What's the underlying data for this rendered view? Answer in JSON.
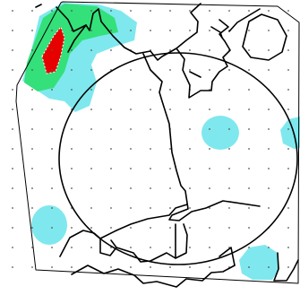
{
  "map": {
    "colors": {
      "background": "#ffffff",
      "outline": "#000000",
      "grid_dot": "#555555",
      "level_low": "#7fe8ee",
      "level_mid": "#33e07a",
      "level_high": "#e60000",
      "level_high_edge": "#ffffff"
    },
    "legend": "none",
    "text": []
  }
}
